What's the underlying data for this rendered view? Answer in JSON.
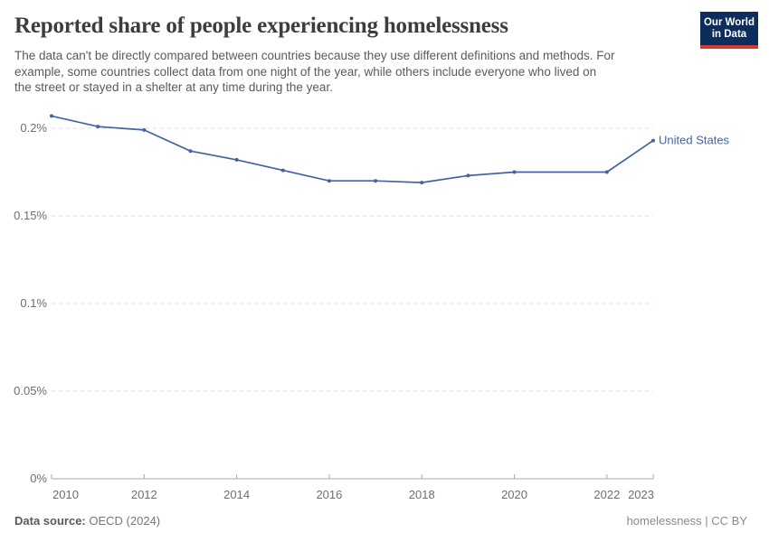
{
  "header": {
    "logo": {
      "line1": "Our World",
      "line2": "in Data",
      "bg_color": "#0d2e5c",
      "accent_color": "#d73a33"
    }
  },
  "chart_data": {
    "type": "line",
    "title": "Reported share of people experiencing homelessness",
    "subtitle": "The data can't be directly compared between countries because they use different definitions and methods. For example, some countries collect data from one night of the year, while others include everyone who lived on the street or stayed in a shelter at any time during the year.",
    "subtitle_lines": [
      "The data can't be directly compared between countries because they use different definitions and methods. For",
      "example, some countries collect data from one night of the year, while others include everyone who lived on",
      "the street or stayed in a shelter at any time during the year."
    ],
    "xlabel": "",
    "ylabel": "",
    "unit": "%",
    "xlim": [
      2010,
      2023
    ],
    "ylim": [
      0,
      0.2155
    ],
    "x_ticks": [
      2010,
      2012,
      2014,
      2016,
      2018,
      2020,
      2022,
      2023
    ],
    "y_ticks": [
      {
        "value": 0,
        "label": "0%"
      },
      {
        "value": 0.05,
        "label": "0.05%"
      },
      {
        "value": 0.1,
        "label": "0.1%"
      },
      {
        "value": 0.15,
        "label": "0.15%"
      },
      {
        "value": 0.2,
        "label": "0.2%"
      }
    ],
    "grid": "horizontal-dashed",
    "legend": "end-of-line-label",
    "series": [
      {
        "name": "United States",
        "color": "#4264a3",
        "points": [
          [
            2010,
            0.207
          ],
          [
            2011,
            0.201
          ],
          [
            2012,
            0.199
          ],
          [
            2013,
            0.187
          ],
          [
            2014,
            0.182
          ],
          [
            2015,
            0.176
          ],
          [
            2016,
            0.17
          ],
          [
            2017,
            0.17
          ],
          [
            2018,
            0.169
          ],
          [
            2019,
            0.173
          ],
          [
            2020,
            0.175
          ],
          [
            2022,
            0.175
          ],
          [
            2023,
            0.193
          ]
        ]
      }
    ]
  },
  "theme": {
    "background": "#ffffff",
    "grid_color": "#dcdcdc",
    "axis_color": "#a8a8a8",
    "tick_label_color": "#6e6e6e",
    "title_color": "#3d3d3d",
    "subtitle_color": "#5a5a5a"
  },
  "footer": {
    "data_source_label": "Data source:",
    "data_source_value": "OECD (2024)",
    "license": "homelessness | CC BY"
  }
}
